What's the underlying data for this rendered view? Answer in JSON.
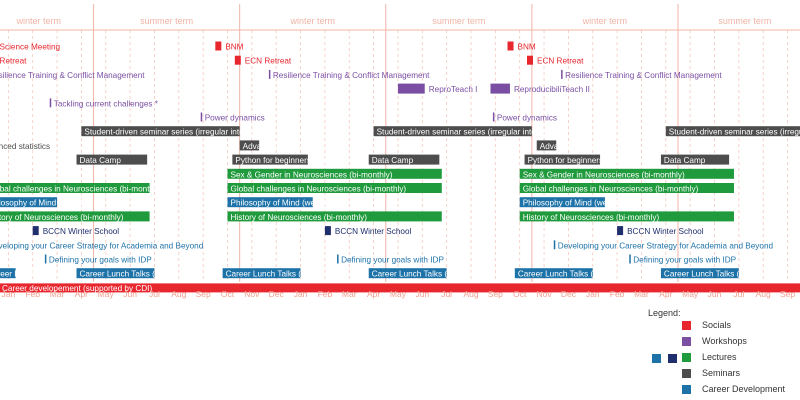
{
  "colors": {
    "socials": "#e8262e",
    "workshops": "#7a4fa3",
    "lectures": "#1f9a3c",
    "seminars": "#4d4d4d",
    "career": "#1d72a8",
    "winter_school": "#1f2f6e",
    "term_line": "#f0b4a6",
    "term_text": "#f0b4a6",
    "month_text": "#f0a08e",
    "grid": "#f4c8bd",
    "bottom_bar": "#e8262e"
  },
  "chart_data": {
    "type": "timeline",
    "x_axis": {
      "start": "2021-12",
      "end": "2024-09",
      "tick_labels": [
        "Jan",
        "Feb",
        "Mar",
        "Apr",
        "May",
        "Jun",
        "Jul",
        "Aug",
        "Sep",
        "Oct",
        "Nov",
        "Dec",
        "Jan",
        "Feb",
        "Mar",
        "Apr",
        "May",
        "Jun",
        "Jul",
        "Aug",
        "Sep",
        "Oct",
        "Nov",
        "Dec",
        "Jan",
        "Feb",
        "Mar",
        "Apr",
        "May",
        "Jun",
        "Jul",
        "Aug",
        "Sep"
      ]
    },
    "terms": [
      {
        "label": "winter term",
        "start": 0.0,
        "end": 4.5
      },
      {
        "label": "summer term",
        "start": 4.5,
        "end": 10.5
      },
      {
        "label": "winter term",
        "start": 10.5,
        "end": 16.5
      },
      {
        "label": "summer term",
        "start": 16.5,
        "end": 22.5
      },
      {
        "label": "winter term",
        "start": 22.5,
        "end": 28.5
      },
      {
        "label": "summer term",
        "start": 28.5,
        "end": 34.0
      }
    ],
    "events": [
      {
        "label": "ECN Science Meeting",
        "category": "socials",
        "row": 0,
        "start": 0.0,
        "end": 0.25,
        "style": "text"
      },
      {
        "label": "BNM",
        "category": "socials",
        "row": 0,
        "start": 9.5,
        "end": 9.75,
        "style": "square"
      },
      {
        "label": "BNM",
        "category": "socials",
        "row": 0,
        "start": 21.5,
        "end": 21.75,
        "style": "square"
      },
      {
        "label": "ECN Retreat",
        "category": "socials",
        "row": 1,
        "start": 0.0,
        "end": 0.25,
        "style": "text"
      },
      {
        "label": "ECN Retreat",
        "category": "socials",
        "row": 1,
        "start": 10.3,
        "end": 10.5,
        "style": "square"
      },
      {
        "label": "ECN Retreat",
        "category": "socials",
        "row": 1,
        "start": 22.3,
        "end": 22.5,
        "style": "square"
      },
      {
        "label": "Resilience Training & Conflict Management",
        "category": "workshops",
        "row": 2,
        "start": 0.0,
        "end": 0.1,
        "style": "line"
      },
      {
        "label": "Resilience Training & Conflict Management",
        "category": "workshops",
        "row": 2,
        "start": 11.7,
        "end": 11.8,
        "style": "line"
      },
      {
        "label": "Resilience Training & Conflict Management",
        "category": "workshops",
        "row": 2,
        "start": 23.7,
        "end": 23.8,
        "style": "line"
      },
      {
        "label": "ReproTeach I",
        "category": "workshops",
        "row": 3,
        "start": 17.0,
        "end": 18.1,
        "style": "bar"
      },
      {
        "label": "ReproducibiliTeach II",
        "category": "workshops",
        "row": 3,
        "start": 20.8,
        "end": 21.6,
        "style": "bar"
      },
      {
        "label": "Tackling current challenges *",
        "category": "workshops",
        "row": 4,
        "start": 2.7,
        "end": 2.8,
        "style": "line"
      },
      {
        "label": "Power dynamics",
        "category": "workshops",
        "row": 5,
        "start": 8.9,
        "end": 9.0,
        "style": "line"
      },
      {
        "label": "Power dynamics",
        "category": "workshops",
        "row": 5,
        "start": 20.9,
        "end": 21.0,
        "style": "line"
      },
      {
        "label": "Student-driven seminar series (irregular intervals)",
        "category": "seminars",
        "row": 6,
        "start": 4.0,
        "end": 10.5,
        "style": "bar"
      },
      {
        "label": "Student-driven seminar series (irregular intervals)",
        "category": "seminars",
        "row": 6,
        "start": 16.0,
        "end": 22.5,
        "style": "bar"
      },
      {
        "label": "Student-driven seminar series (irregular intervals)",
        "category": "seminars",
        "row": 6,
        "start": 28.0,
        "end": 34.0,
        "style": "bar"
      },
      {
        "label": "Advanced statistics",
        "category": "seminars",
        "row": 7,
        "start": 0.0,
        "end": 0.1,
        "style": "text"
      },
      {
        "label": "Advanced statistics",
        "category": "seminars",
        "row": 7,
        "start": 10.5,
        "end": 11.3,
        "style": "bar"
      },
      {
        "label": "Advanced statistics",
        "category": "seminars",
        "row": 7,
        "start": 22.7,
        "end": 23.5,
        "style": "bar"
      },
      {
        "label": "Data Camp",
        "category": "seminars",
        "row": 8,
        "start": 3.8,
        "end": 6.7,
        "style": "bar"
      },
      {
        "label": "Python for beginners (weekly)",
        "category": "seminars",
        "row": 8,
        "start": 10.2,
        "end": 13.3,
        "style": "bar"
      },
      {
        "label": "Data Camp",
        "category": "seminars",
        "row": 8,
        "start": 15.8,
        "end": 18.7,
        "style": "bar"
      },
      {
        "label": "Python for beginners (weekly)",
        "category": "seminars",
        "row": 8,
        "start": 22.2,
        "end": 25.3,
        "style": "bar"
      },
      {
        "label": "Data Camp",
        "category": "seminars",
        "row": 8,
        "start": 27.8,
        "end": 30.6,
        "style": "bar"
      },
      {
        "label": "Sex & Gender in Neurosciences (bi-monthly)",
        "category": "lectures",
        "row": 9,
        "start": 10.0,
        "end": 18.8,
        "style": "bar"
      },
      {
        "label": "Sex & Gender in Neurosciences (bi-monthly)",
        "category": "lectures",
        "row": 9,
        "start": 22.0,
        "end": 30.8,
        "style": "bar"
      },
      {
        "label": "Global challenges in Neurosciences (bi-monthly)",
        "category": "lectures",
        "row": 10,
        "start": 0.0,
        "end": 6.8,
        "style": "bar"
      },
      {
        "label": "Global challenges in Neurosciences (bi-monthly)",
        "category": "lectures",
        "row": 10,
        "start": 10.0,
        "end": 18.8,
        "style": "bar"
      },
      {
        "label": "Global challenges in Neurosciences (bi-monthly)",
        "category": "lectures",
        "row": 10,
        "start": 22.0,
        "end": 30.8,
        "style": "bar"
      },
      {
        "label": "Philosophy of Mind (weekly)",
        "category": "career",
        "row": 11,
        "start": 0.0,
        "end": 3.0,
        "style": "bar"
      },
      {
        "label": "Philosophy of Mind (weekly)",
        "category": "career",
        "row": 11,
        "start": 10.0,
        "end": 13.5,
        "style": "bar"
      },
      {
        "label": "Philosophy of Mind (weekly)",
        "category": "career",
        "row": 11,
        "start": 22.0,
        "end": 25.5,
        "style": "bar"
      },
      {
        "label": "History of Neurosciences (bi-monthly)",
        "category": "lectures",
        "row": 12,
        "start": 0.0,
        "end": 6.8,
        "style": "bar"
      },
      {
        "label": "History of Neurosciences (bi-monthly)",
        "category": "lectures",
        "row": 12,
        "start": 10.0,
        "end": 18.8,
        "style": "bar"
      },
      {
        "label": "History of Neurosciences (bi-monthly)",
        "category": "lectures",
        "row": 12,
        "start": 22.0,
        "end": 30.8,
        "style": "bar"
      },
      {
        "label": "BCCN Winter School",
        "category": "winter_school",
        "row": 13,
        "start": 2.0,
        "end": 2.2,
        "style": "square"
      },
      {
        "label": "BCCN Winter School",
        "category": "winter_school",
        "row": 13,
        "start": 14.0,
        "end": 14.2,
        "style": "square"
      },
      {
        "label": "BCCN Winter School",
        "category": "winter_school",
        "row": 13,
        "start": 26.0,
        "end": 26.2,
        "style": "square"
      },
      {
        "label": "Developing your Career Strategy for Academia and Beyond",
        "category": "career",
        "row": 14,
        "start": 0.0,
        "end": 0.1,
        "style": "line"
      },
      {
        "label": "Developing your Career Strategy for Academia and Beyond",
        "category": "career",
        "row": 14,
        "start": 23.4,
        "end": 23.5,
        "style": "line"
      },
      {
        "label": "Defining your goals with IDP",
        "category": "career",
        "row": 15,
        "start": 2.5,
        "end": 2.6,
        "style": "line"
      },
      {
        "label": "Defining your goals with IDP",
        "category": "career",
        "row": 15,
        "start": 14.5,
        "end": 14.6,
        "style": "line"
      },
      {
        "label": "Defining your goals with IDP",
        "category": "career",
        "row": 15,
        "start": 26.5,
        "end": 26.6,
        "style": "line"
      },
      {
        "label": "Career Lunch Talks (weekly)",
        "category": "career",
        "row": 16,
        "start": 0.0,
        "end": 1.3,
        "style": "bar"
      },
      {
        "label": "Career Lunch Talks (weekly)",
        "category": "career",
        "row": 16,
        "start": 3.8,
        "end": 7.0,
        "style": "bar"
      },
      {
        "label": "Career Lunch Talks (weekly)",
        "category": "career",
        "row": 16,
        "start": 9.8,
        "end": 13.0,
        "style": "bar"
      },
      {
        "label": "Career Lunch Talks (weekly)",
        "category": "career",
        "row": 16,
        "start": 15.8,
        "end": 19.0,
        "style": "bar"
      },
      {
        "label": "Career Lunch Talks (weekly)",
        "category": "career",
        "row": 16,
        "start": 21.8,
        "end": 25.0,
        "style": "bar"
      },
      {
        "label": "Career Lunch Talks (weekly)",
        "category": "career",
        "row": 16,
        "start": 27.8,
        "end": 31.0,
        "style": "bar"
      },
      {
        "label": "Career Lunch Talks (weekly)",
        "category": "career",
        "row": 16,
        "start": 33.7,
        "end": 34.0,
        "style": "bar"
      },
      {
        "label": "Career developement (supported by CDI)",
        "category": "bottom_bar",
        "row": 17,
        "start": 0.0,
        "end": 34.0,
        "style": "fullbar"
      }
    ]
  },
  "legend": {
    "title": "Legend:",
    "items": [
      {
        "label": "Socials",
        "color": "#e8262e"
      },
      {
        "label": "Workshops",
        "color": "#7a4fa3"
      },
      {
        "label": "Lectures",
        "color": "#1f9a3c"
      },
      {
        "label": "Seminars",
        "color": "#4d4d4d"
      },
      {
        "label": "Career Development",
        "color": "#1d72a8"
      }
    ]
  }
}
